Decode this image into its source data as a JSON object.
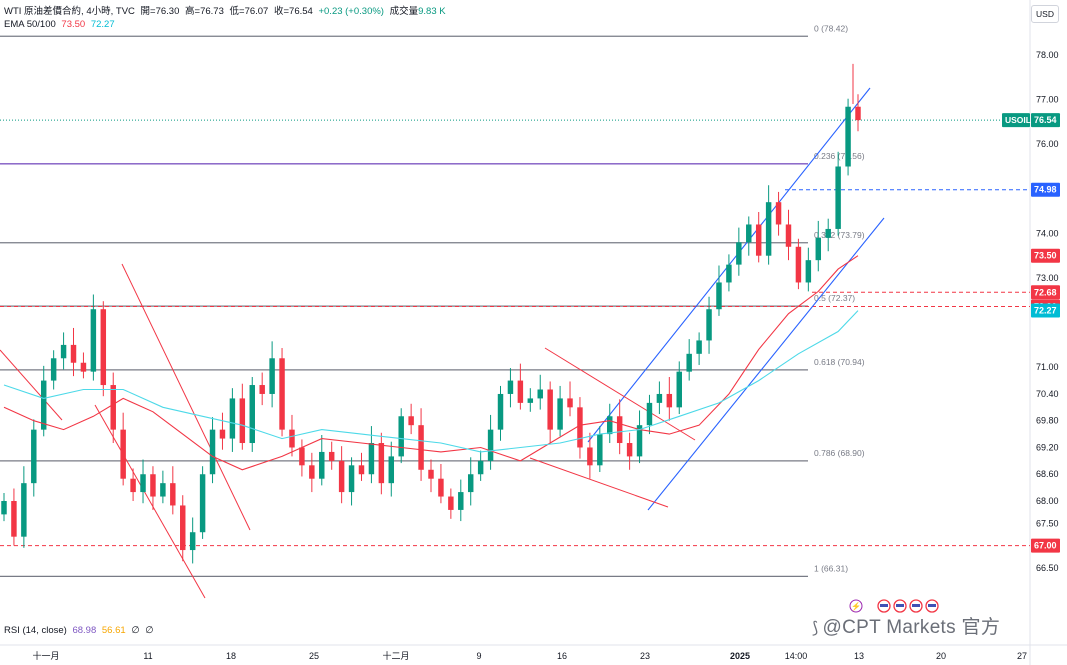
{
  "header": {
    "symbol": "WTI 原油差價合約, 4小時, TVC",
    "open_label": "開",
    "open": "=76.30",
    "high_label": "高",
    "high": "=76.73",
    "low_label": "低",
    "low": "=76.07",
    "close_label": "收",
    "close": "=76.54",
    "change": "+0.23 (+0.30%)",
    "volume_label": "成交量",
    "volume": "9.83 K",
    "ema_label": "EMA 50/100",
    "ema50": "73.50",
    "ema100": "72.27"
  },
  "currency_button": "USD",
  "rsi": {
    "label": "RSI (14, close)",
    "value1": "68.98",
    "value2": "56.61",
    "extra1": "∅",
    "extra2": "∅"
  },
  "watermark": "@CPT Markets 官方",
  "colors": {
    "up": "#089981",
    "down": "#f23645",
    "ema50": "#f23645",
    "ema100": "#4dd9e8",
    "channel": "#2962ff",
    "wedge": "#f23645",
    "fib": "#787b86",
    "horizontal": "#7e57c2"
  },
  "chart_data": {
    "type": "candlestick",
    "timeframe": "4h",
    "y_axis": {
      "ticks": [
        "78.00",
        "77.00",
        "76.00",
        "74.00",
        "73.00",
        "71.00",
        "70.40",
        "69.80",
        "69.20",
        "68.60",
        "68.00",
        "67.50",
        "66.50"
      ],
      "range": [
        66.05,
        78.85
      ]
    },
    "x_axis": {
      "ticks": [
        "十一月",
        "11",
        "18",
        "25",
        "十二月",
        "9",
        "16",
        "23",
        "2025",
        "14:00",
        "13",
        "20",
        "27"
      ]
    },
    "price_labels": [
      {
        "label": "USOIL",
        "value": "76.54",
        "price": 76.54,
        "color": "#089981"
      },
      {
        "value": "74.98",
        "price": 74.98,
        "color": "#2962ff"
      },
      {
        "value": "73.50",
        "price": 73.5,
        "color": "#f23645"
      },
      {
        "value": "72.68",
        "price": 72.68,
        "color": "#f23645"
      },
      {
        "value": "72.36",
        "price": 72.36,
        "color": "#f23645"
      },
      {
        "value": "72.27",
        "price": 72.27,
        "color": "#00bcd4"
      },
      {
        "value": "67.00",
        "price": 67.0,
        "color": "#f23645"
      }
    ],
    "fibonacci": [
      {
        "label": "0 (78.42)",
        "price": 78.42
      },
      {
        "label": "0.236 (75.56)",
        "price": 75.56
      },
      {
        "label": "0.382 (73.79)",
        "price": 73.79
      },
      {
        "label": "0.5 (72.37)",
        "price": 72.37
      },
      {
        "label": "0.618 (70.94)",
        "price": 70.94
      },
      {
        "label": "0.786 (68.90)",
        "price": 68.9
      },
      {
        "label": "1 (66.31)",
        "price": 66.31
      }
    ],
    "ema50_points": [
      [
        0,
        70.1
      ],
      [
        3,
        69.8
      ],
      [
        6,
        69.6
      ],
      [
        9,
        69.9
      ],
      [
        12,
        70.3
      ],
      [
        15,
        70.0
      ],
      [
        18,
        69.5
      ],
      [
        21,
        69.0
      ],
      [
        24,
        68.7
      ],
      [
        28,
        69.0
      ],
      [
        32,
        69.4
      ],
      [
        36,
        69.3
      ],
      [
        40,
        69.2
      ],
      [
        44,
        69.1
      ],
      [
        48,
        69.2
      ],
      [
        52,
        68.9
      ],
      [
        55,
        69.3
      ],
      [
        58,
        69.7
      ],
      [
        61,
        69.8
      ],
      [
        64,
        69.6
      ],
      [
        67,
        69.5
      ],
      [
        70,
        69.7
      ],
      [
        73,
        70.4
      ],
      [
        76,
        71.4
      ],
      [
        79,
        72.2
      ],
      [
        82,
        72.7
      ],
      [
        84,
        73.2
      ],
      [
        86,
        73.5
      ]
    ],
    "ema100_points": [
      [
        0,
        70.6
      ],
      [
        4,
        70.3
      ],
      [
        8,
        70.5
      ],
      [
        12,
        70.5
      ],
      [
        16,
        70.1
      ],
      [
        20,
        69.9
      ],
      [
        24,
        69.7
      ],
      [
        28,
        69.4
      ],
      [
        32,
        69.6
      ],
      [
        36,
        69.5
      ],
      [
        40,
        69.4
      ],
      [
        44,
        69.3
      ],
      [
        48,
        69.1
      ],
      [
        52,
        69.2
      ],
      [
        56,
        69.3
      ],
      [
        60,
        69.5
      ],
      [
        64,
        69.6
      ],
      [
        68,
        69.9
      ],
      [
        72,
        70.2
      ],
      [
        76,
        70.7
      ],
      [
        80,
        71.3
      ],
      [
        84,
        71.8
      ],
      [
        86,
        72.27
      ]
    ]
  }
}
